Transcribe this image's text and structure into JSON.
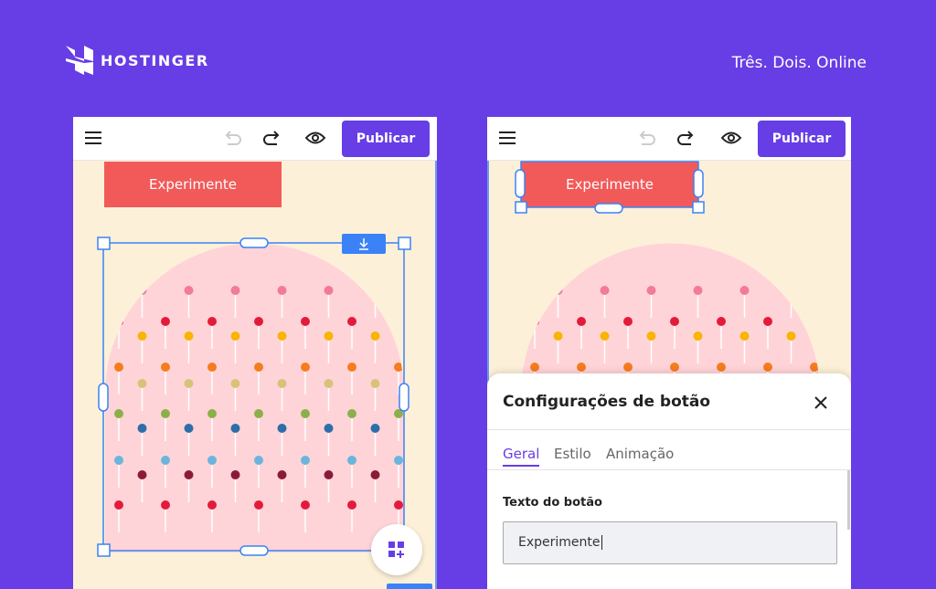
{
  "header": {
    "brand": "HOSTINGER",
    "tagline": "Três. Dois. Online"
  },
  "editors": [
    {
      "publish": "Publicar",
      "button": "Experimente"
    },
    {
      "publish": "Publicar",
      "button": "Experimente"
    }
  ],
  "panel": {
    "title": "Configurações de botão",
    "tabs": [
      "Geral",
      "Estilo",
      "Animação"
    ],
    "field_label": "Texto do botão",
    "field_value": "Experimente"
  }
}
